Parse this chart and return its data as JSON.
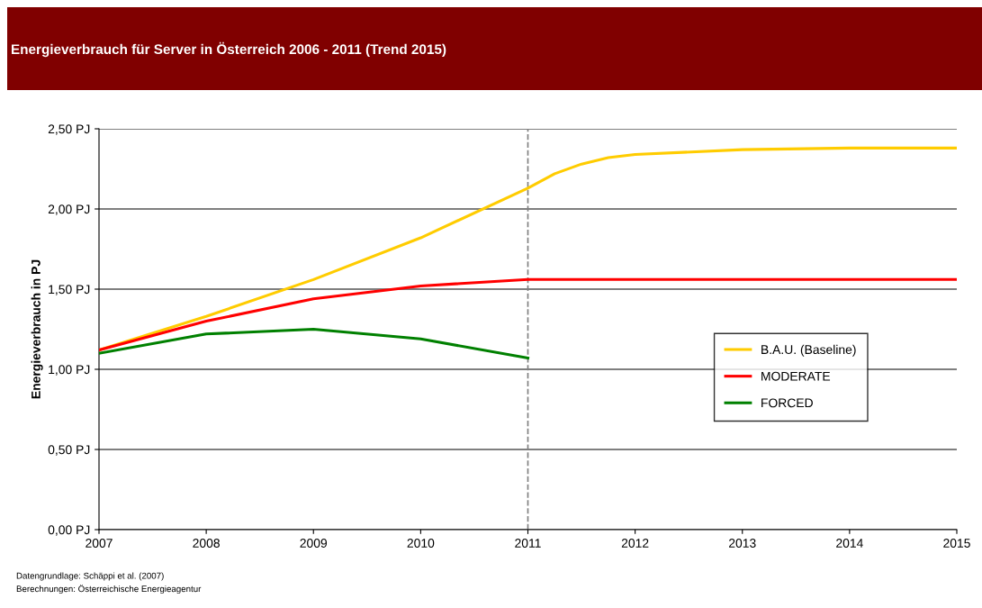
{
  "chart_data": {
    "type": "line",
    "title": "Energieverbrauch für Server in Österreich 2006 - 2011 (Trend 2015)",
    "ylabel": "Energieverbrauch in PJ",
    "x": [
      2007,
      2008,
      2009,
      2010,
      2011,
      2012,
      2013,
      2014,
      2015
    ],
    "series": [
      {
        "name": "B.A.U. (Baseline)",
        "color": "#ffcc00",
        "x": [
          2007,
          2008,
          2009,
          2010,
          2011,
          2011.25,
          2011.5,
          2011.75,
          2012,
          2013,
          2014,
          2015
        ],
        "values": [
          1.12,
          1.33,
          1.56,
          1.82,
          2.13,
          2.22,
          2.28,
          2.32,
          2.34,
          2.37,
          2.38,
          2.38
        ]
      },
      {
        "name": "MODERATE",
        "color": "#ff0000",
        "values": [
          1.12,
          1.3,
          1.44,
          1.52,
          1.56,
          1.56,
          1.56,
          1.56,
          1.56
        ]
      },
      {
        "name": "FORCED",
        "color": "#008000",
        "values": [
          1.1,
          1.22,
          1.25,
          1.19,
          1.07,
          null,
          null,
          null,
          null
        ]
      }
    ],
    "xlim": [
      2007,
      2015
    ],
    "xticks": [
      2007,
      2008,
      2009,
      2010,
      2011,
      2012,
      2013,
      2014,
      2015
    ],
    "ylim": [
      0,
      2.5
    ],
    "yticks": [
      {
        "value": 0,
        "label": "0,00 PJ"
      },
      {
        "value": 0.5,
        "label": "0,50 PJ"
      },
      {
        "value": 1.0,
        "label": "1,00 PJ"
      },
      {
        "value": 1.5,
        "label": "1,50 PJ"
      },
      {
        "value": 2.0,
        "label": "2,00 PJ"
      },
      {
        "value": 2.5,
        "label": "2,50 PJ"
      }
    ],
    "grid": "y",
    "legend": "right",
    "marker": "none",
    "line_style": "solid",
    "ref_lines": [
      {
        "axis": "x",
        "value": 2011,
        "color": "#808080",
        "line_style": "dashed"
      }
    ],
    "annotations": [
      "Datengrundlage: Schäppi et al. (2007)",
      "Berechnungen: Österreichische Energieagentur"
    ]
  }
}
